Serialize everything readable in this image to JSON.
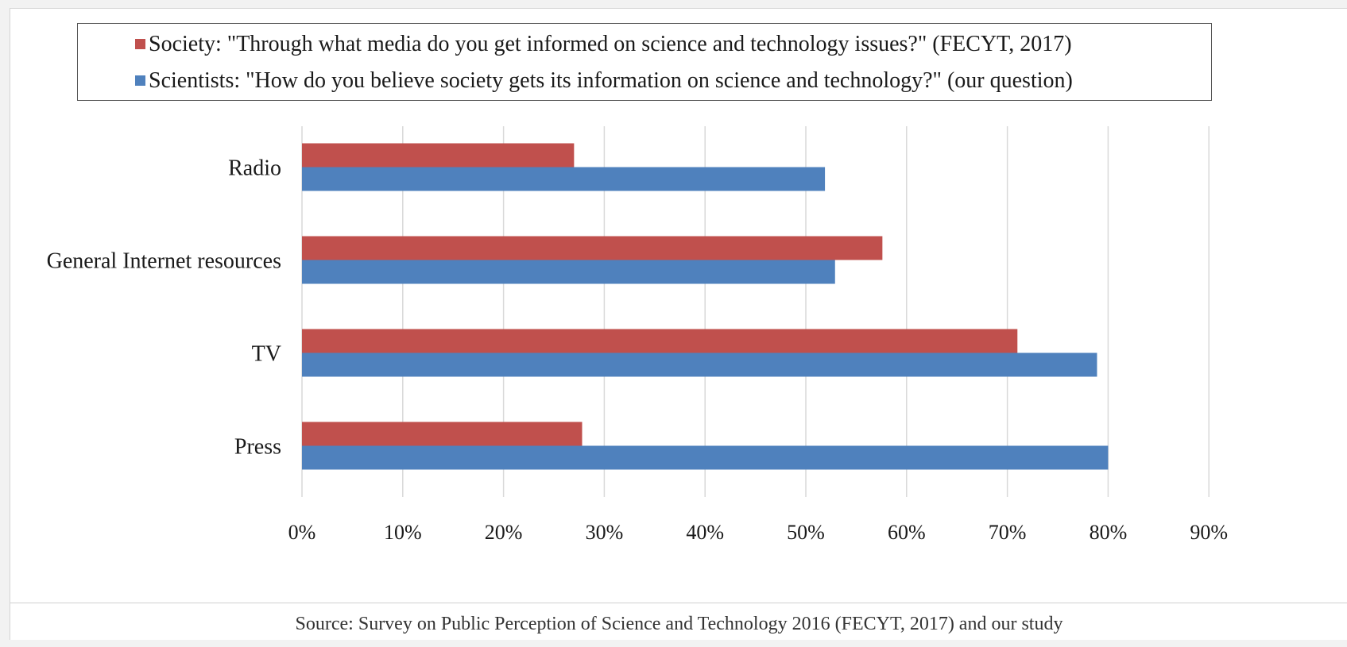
{
  "colors": {
    "society": "#c0504d",
    "scientists": "#4f81bd",
    "grid": "#d9d9d9"
  },
  "legend": {
    "society": "Society: \"Through what media do you get informed on science and technology issues?\" (FECYT, 2017)",
    "scientists": "Scientists: \"How do you believe society gets its information on science and technology?\" (our question)"
  },
  "source": "Source: Survey on Public Perception of Science and Technology 2016 (FECYT, 2017) and our study",
  "chart_data": {
    "type": "bar",
    "orientation": "horizontal",
    "categories": [
      "Radio",
      "General Internet resources",
      "TV",
      "Press"
    ],
    "series": [
      {
        "name": "Society: \"Through what media do you get informed on science and technology issues?\" (FECYT, 2017)",
        "values": [
          27,
          57.6,
          71,
          27.8
        ]
      },
      {
        "name": "Scientists: \"How do you believe society gets its information on science and technology?\" (our question)",
        "values": [
          51.9,
          52.9,
          78.9,
          80
        ]
      }
    ],
    "x_ticks": [
      "0%",
      "10%",
      "20%",
      "30%",
      "40%",
      "50%",
      "60%",
      "70%",
      "80%",
      "90%"
    ],
    "xlim": [
      0,
      90
    ],
    "grid": "vertical",
    "legend_position": "top"
  }
}
